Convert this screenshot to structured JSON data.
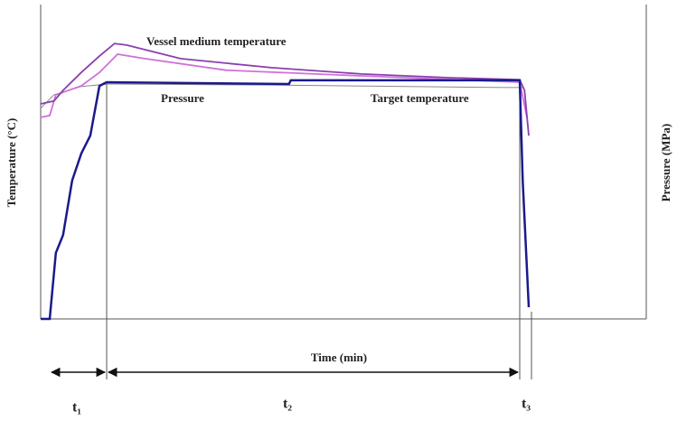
{
  "chart_data": {
    "type": "line",
    "y_label": "Temperature (°C)",
    "y2_label": "Pressure (MPa)",
    "x_label": "Time (min)",
    "xlim": [
      0,
      100
    ],
    "ylim": [
      0,
      100
    ],
    "phase_labels": [
      "t₁",
      "t₂",
      "t₃"
    ],
    "series": [
      {
        "name": "Pressure",
        "color": "#1a1a8c",
        "x": [
          0,
          1.5,
          2.5,
          3.7,
          5.2,
          6.7,
          8.2,
          9.7,
          10.9,
          41,
          41.3,
          79.1,
          79.6,
          80.6
        ],
        "values": [
          0,
          0,
          21,
          26.7,
          44,
          52.6,
          58.3,
          74.1,
          75.3,
          74.7,
          75.9,
          75.9,
          44,
          3.7
        ]
      },
      {
        "name": "Vessel medium temperature",
        "color": "#8a3fb0",
        "x": [
          0,
          2.2,
          3.7,
          6.7,
          9.7,
          12.2,
          14.2,
          23.1,
          38.1,
          53,
          67.9,
          79.1,
          79.9,
          80.6
        ],
        "values": [
          68.4,
          69.3,
          72.7,
          78.4,
          83.6,
          87.6,
          87.1,
          82.8,
          79.9,
          77.9,
          76.7,
          76.1,
          72.7,
          58.3
        ]
      },
      {
        "color": "#d070d8",
        "x": [
          0,
          1.5,
          2.5,
          6.7,
          9.7,
          12.7,
          17.2,
          30.6,
          53,
          79.1,
          80.3
        ],
        "values": [
          64.1,
          64.7,
          71.3,
          74.1,
          78.4,
          84.2,
          82.8,
          79.1,
          77.3,
          75.3,
          64.1
        ]
      },
      {
        "name": "Target temperature",
        "color": "#888888",
        "x": [
          0,
          2.2,
          6.7,
          11.2,
          38.1,
          76.9,
          79.6
        ],
        "values": [
          67,
          71.3,
          73.9,
          74.7,
          74.4,
          73.6,
          73.6
        ]
      }
    ]
  }
}
